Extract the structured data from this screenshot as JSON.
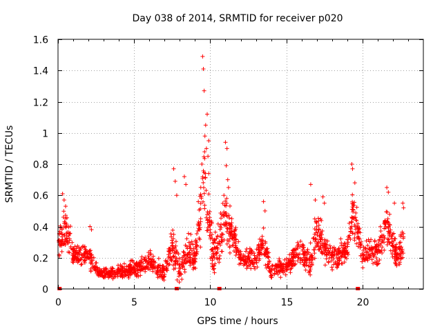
{
  "chart_data": {
    "type": "scatter",
    "title": "Day 038 of 2014, SRMTID for receiver p020",
    "xlabel": "GPS time / hours",
    "ylabel": "SRMTID / TECUs",
    "xlim": [
      0,
      24
    ],
    "ylim": [
      0,
      1.6
    ],
    "xticks": [
      0,
      5,
      10,
      15,
      20
    ],
    "xtick_labels": [
      "0",
      "5",
      "10",
      "15",
      "20"
    ],
    "yticks": [
      0,
      0.2,
      0.4,
      0.6,
      0.8,
      1.0,
      1.2,
      1.4,
      1.6
    ],
    "ytick_labels": [
      "0",
      "0.2",
      "0.4",
      "0.6",
      "0.8",
      "1",
      "1.2",
      "1.4",
      "1.6"
    ],
    "grid": true,
    "marker": "+",
    "color": "#ff0000",
    "time_range_hours": [
      0.05,
      22.7
    ],
    "data_gap_markers_x": [
      0.1,
      7.8,
      10.6,
      19.7
    ],
    "series": [
      {
        "name": "SRMTID",
        "envelope": [
          {
            "x": 0.0,
            "base": 0.28,
            "spread": 0.12
          },
          {
            "x": 0.4,
            "base": 0.4,
            "spread": 0.2
          },
          {
            "x": 1.0,
            "base": 0.22,
            "spread": 0.1
          },
          {
            "x": 2.0,
            "base": 0.22,
            "spread": 0.12
          },
          {
            "x": 2.7,
            "base": 0.1,
            "spread": 0.05
          },
          {
            "x": 4.0,
            "base": 0.1,
            "spread": 0.06
          },
          {
            "x": 5.0,
            "base": 0.13,
            "spread": 0.08
          },
          {
            "x": 6.0,
            "base": 0.17,
            "spread": 0.1
          },
          {
            "x": 7.0,
            "base": 0.1,
            "spread": 0.08
          },
          {
            "x": 7.5,
            "base": 0.3,
            "spread": 0.2
          },
          {
            "x": 8.0,
            "base": 0.12,
            "spread": 0.1
          },
          {
            "x": 8.5,
            "base": 0.25,
            "spread": 0.15
          },
          {
            "x": 9.0,
            "base": 0.2,
            "spread": 0.12
          },
          {
            "x": 9.6,
            "base": 0.7,
            "spread": 0.35
          },
          {
            "x": 10.2,
            "base": 0.2,
            "spread": 0.15
          },
          {
            "x": 11.0,
            "base": 0.45,
            "spread": 0.25
          },
          {
            "x": 12.0,
            "base": 0.2,
            "spread": 0.1
          },
          {
            "x": 13.0,
            "base": 0.18,
            "spread": 0.1
          },
          {
            "x": 13.5,
            "base": 0.3,
            "spread": 0.15
          },
          {
            "x": 14.0,
            "base": 0.12,
            "spread": 0.08
          },
          {
            "x": 15.0,
            "base": 0.15,
            "spread": 0.08
          },
          {
            "x": 16.0,
            "base": 0.25,
            "spread": 0.12
          },
          {
            "x": 16.5,
            "base": 0.15,
            "spread": 0.1
          },
          {
            "x": 17.0,
            "base": 0.35,
            "spread": 0.2
          },
          {
            "x": 18.0,
            "base": 0.2,
            "spread": 0.1
          },
          {
            "x": 19.0,
            "base": 0.25,
            "spread": 0.12
          },
          {
            "x": 19.4,
            "base": 0.5,
            "spread": 0.25
          },
          {
            "x": 20.0,
            "base": 0.22,
            "spread": 0.12
          },
          {
            "x": 21.0,
            "base": 0.25,
            "spread": 0.15
          },
          {
            "x": 21.6,
            "base": 0.4,
            "spread": 0.2
          },
          {
            "x": 22.3,
            "base": 0.2,
            "spread": 0.1
          },
          {
            "x": 22.7,
            "base": 0.3,
            "spread": 0.2
          }
        ],
        "peaks": [
          {
            "x": 0.3,
            "y": 0.61
          },
          {
            "x": 0.4,
            "y": 0.57
          },
          {
            "x": 0.5,
            "y": 0.53
          },
          {
            "x": 2.1,
            "y": 0.4
          },
          {
            "x": 2.2,
            "y": 0.38
          },
          {
            "x": 7.6,
            "y": 0.77
          },
          {
            "x": 7.7,
            "y": 0.69
          },
          {
            "x": 7.8,
            "y": 0.6
          },
          {
            "x": 8.3,
            "y": 0.72
          },
          {
            "x": 8.4,
            "y": 0.67
          },
          {
            "x": 9.5,
            "y": 1.49
          },
          {
            "x": 9.55,
            "y": 1.41
          },
          {
            "x": 9.6,
            "y": 1.27
          },
          {
            "x": 9.8,
            "y": 1.12
          },
          {
            "x": 9.7,
            "y": 1.05
          },
          {
            "x": 9.65,
            "y": 0.98
          },
          {
            "x": 9.9,
            "y": 0.95
          },
          {
            "x": 9.75,
            "y": 0.9
          },
          {
            "x": 9.85,
            "y": 0.85
          },
          {
            "x": 9.45,
            "y": 0.8
          },
          {
            "x": 9.9,
            "y": 0.74
          },
          {
            "x": 11.0,
            "y": 0.94
          },
          {
            "x": 11.1,
            "y": 0.9
          },
          {
            "x": 11.05,
            "y": 0.79
          },
          {
            "x": 11.15,
            "y": 0.7
          },
          {
            "x": 11.2,
            "y": 0.65
          },
          {
            "x": 10.9,
            "y": 0.6
          },
          {
            "x": 13.5,
            "y": 0.56
          },
          {
            "x": 13.6,
            "y": 0.5
          },
          {
            "x": 16.9,
            "y": 0.57
          },
          {
            "x": 17.4,
            "y": 0.59
          },
          {
            "x": 17.5,
            "y": 0.55
          },
          {
            "x": 16.6,
            "y": 0.67
          },
          {
            "x": 19.3,
            "y": 0.8
          },
          {
            "x": 19.35,
            "y": 0.77
          },
          {
            "x": 19.5,
            "y": 0.68
          },
          {
            "x": 21.6,
            "y": 0.65
          },
          {
            "x": 21.7,
            "y": 0.62
          },
          {
            "x": 22.1,
            "y": 0.55
          },
          {
            "x": 22.65,
            "y": 0.55
          },
          {
            "x": 22.7,
            "y": 0.52
          }
        ]
      }
    ]
  }
}
